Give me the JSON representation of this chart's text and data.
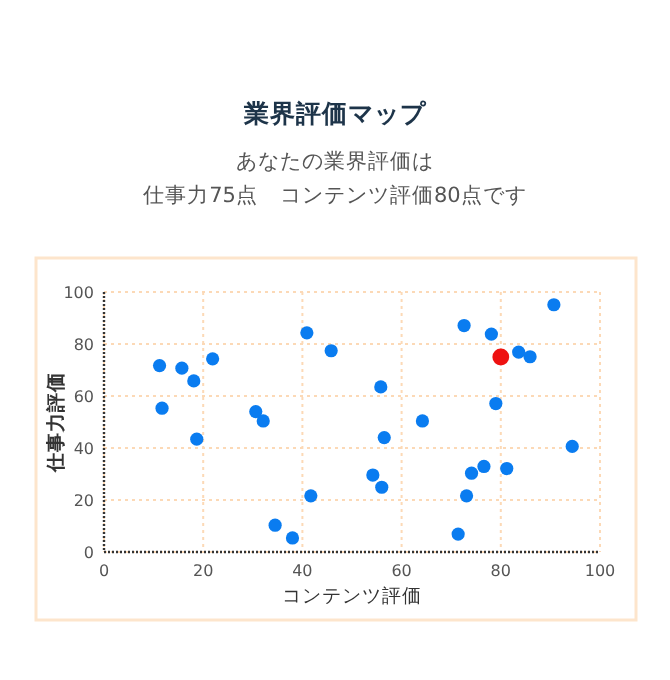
{
  "chart_data": {
    "type": "scatter",
    "title": "業界評価マップ",
    "subtitle": "あなたの業界評価は",
    "annotations": [
      "仕事力75点　コンテンツ評価80点です"
    ],
    "xlabel": "コンテンツ評価",
    "ylabel": "仕事力評価",
    "xlim": [
      0,
      100
    ],
    "ylim": [
      0,
      100
    ],
    "xticks": [
      0,
      20,
      40,
      60,
      80,
      100
    ],
    "yticks": [
      0,
      20,
      40,
      60,
      80,
      100
    ],
    "grid": true,
    "marker": "circle",
    "series": [
      {
        "color": "#0a7cf0",
        "x": [
          11.2,
          11.7,
          15.7,
          18.1,
          18.7,
          21.9,
          30.6,
          32.1,
          34.5,
          38.0,
          40.9,
          41.7,
          45.8,
          54.2,
          55.8,
          56.0,
          56.5,
          64.2,
          71.4,
          72.6,
          73.1,
          74.1,
          76.6,
          78.1,
          79.0,
          81.2,
          83.6,
          85.9,
          90.7,
          94.4
        ],
        "values": [
          71.7,
          55.3,
          70.7,
          65.8,
          43.4,
          74.3,
          54.0,
          50.4,
          10.3,
          5.4,
          84.3,
          21.6,
          77.4,
          29.6,
          63.5,
          24.9,
          44.0,
          50.4,
          6.9,
          87.1,
          21.6,
          30.3,
          32.9,
          83.8,
          57.1,
          32.1,
          76.9,
          75.1,
          95.1,
          40.6
        ]
      },
      {
        "color": "#ee1111",
        "x": [
          80
        ],
        "values": [
          75
        ]
      }
    ]
  }
}
